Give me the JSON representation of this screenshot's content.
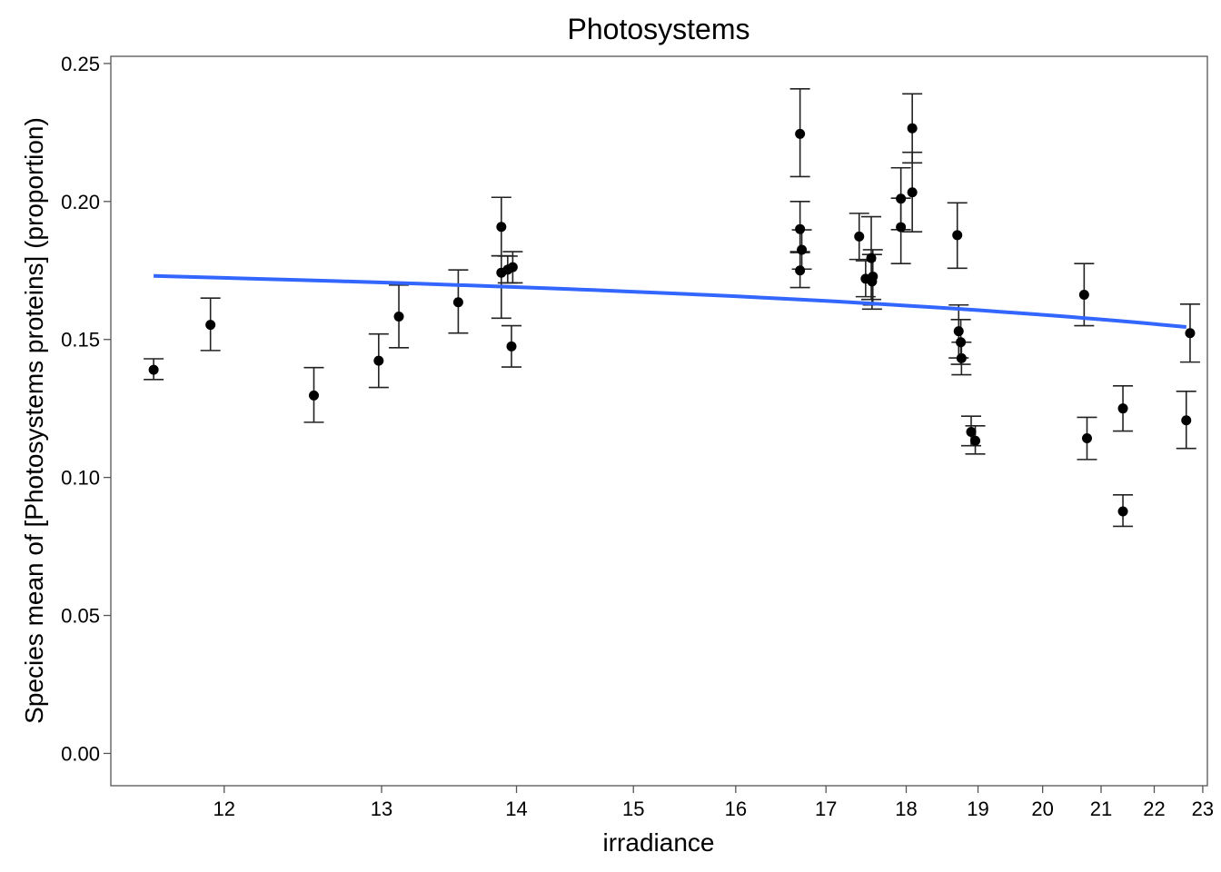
{
  "chart_data": {
    "type": "scatter",
    "title": "Photosystems",
    "xlabel": "irradiance",
    "ylabel": "Species mean of [Photosystems proteins] (proportion)",
    "x_scale": "reciprocal",
    "xlim": [
      11.37,
      23.1
    ],
    "ylim": [
      -0.0117,
      0.2526
    ],
    "x_ticks": [
      12,
      13,
      14,
      15,
      16,
      17,
      18,
      19,
      20,
      21,
      22,
      23
    ],
    "x_tick_labels": [
      "12",
      "13",
      "14",
      "15",
      "16",
      "17",
      "18",
      "19",
      "20",
      "21",
      "22",
      "23"
    ],
    "y_ticks": [
      0.0,
      0.05,
      0.1,
      0.15,
      0.2,
      0.25
    ],
    "y_tick_labels": [
      "0.00",
      "0.05",
      "0.10",
      "0.15",
      "0.20",
      "0.25"
    ],
    "grid": false,
    "point_color": "#000000",
    "trend_color": "#3366FF",
    "trend_line": {
      "x": [
        11.6,
        22.65
      ],
      "y": [
        0.173,
        0.1545
      ]
    },
    "points": [
      {
        "x": 11.6,
        "y": 0.139,
        "lo": 0.1355,
        "hi": 0.143
      },
      {
        "x": 11.92,
        "y": 0.1553,
        "lo": 0.146,
        "hi": 0.165
      },
      {
        "x": 12.55,
        "y": 0.1297,
        "lo": 0.12,
        "hi": 0.1398
      },
      {
        "x": 12.98,
        "y": 0.1423,
        "lo": 0.1326,
        "hi": 0.152
      },
      {
        "x": 13.12,
        "y": 0.1583,
        "lo": 0.147,
        "hi": 0.1697
      },
      {
        "x": 13.55,
        "y": 0.1635,
        "lo": 0.1523,
        "hi": 0.1752
      },
      {
        "x": 13.88,
        "y": 0.1908,
        "lo": 0.1803,
        "hi": 0.2015
      },
      {
        "x": 13.88,
        "y": 0.1742,
        "lo": 0.1577,
        "hi": 0.1803
      },
      {
        "x": 13.93,
        "y": 0.1753,
        "lo": 0.1705,
        "hi": 0.1802
      },
      {
        "x": 13.97,
        "y": 0.1762,
        "lo": 0.1705,
        "hi": 0.1818
      },
      {
        "x": 13.96,
        "y": 0.1475,
        "lo": 0.14,
        "hi": 0.155
      },
      {
        "x": 16.7,
        "y": 0.2245,
        "lo": 0.209,
        "hi": 0.2408
      },
      {
        "x": 16.7,
        "y": 0.19,
        "lo": 0.1815,
        "hi": 0.2
      },
      {
        "x": 16.72,
        "y": 0.1825,
        "lo": 0.1755,
        "hi": 0.1897
      },
      {
        "x": 16.7,
        "y": 0.175,
        "lo": 0.1688,
        "hi": 0.1818
      },
      {
        "x": 17.4,
        "y": 0.1873,
        "lo": 0.179,
        "hi": 0.1957
      },
      {
        "x": 17.48,
        "y": 0.172,
        "lo": 0.1655,
        "hi": 0.1785
      },
      {
        "x": 17.55,
        "y": 0.1795,
        "lo": 0.1645,
        "hi": 0.1945
      },
      {
        "x": 17.57,
        "y": 0.1728,
        "lo": 0.1625,
        "hi": 0.1825
      },
      {
        "x": 17.56,
        "y": 0.171,
        "lo": 0.161,
        "hi": 0.1808
      },
      {
        "x": 17.93,
        "y": 0.201,
        "lo": 0.1898,
        "hi": 0.2122
      },
      {
        "x": 17.93,
        "y": 0.1907,
        "lo": 0.1775,
        "hi": 0.2012
      },
      {
        "x": 18.08,
        "y": 0.2265,
        "lo": 0.214,
        "hi": 0.239
      },
      {
        "x": 18.08,
        "y": 0.2033,
        "lo": 0.189,
        "hi": 0.2178
      },
      {
        "x": 18.7,
        "y": 0.1878,
        "lo": 0.1758,
        "hi": 0.1995
      },
      {
        "x": 18.72,
        "y": 0.153,
        "lo": 0.1433,
        "hi": 0.1625
      },
      {
        "x": 18.75,
        "y": 0.149,
        "lo": 0.141,
        "hi": 0.1572
      },
      {
        "x": 18.76,
        "y": 0.1432,
        "lo": 0.1372,
        "hi": 0.149
      },
      {
        "x": 18.9,
        "y": 0.1165,
        "lo": 0.1115,
        "hi": 0.1222
      },
      {
        "x": 18.96,
        "y": 0.1133,
        "lo": 0.1085,
        "hi": 0.1187
      },
      {
        "x": 20.7,
        "y": 0.1662,
        "lo": 0.155,
        "hi": 0.1775
      },
      {
        "x": 20.75,
        "y": 0.1142,
        "lo": 0.1065,
        "hi": 0.1218
      },
      {
        "x": 21.4,
        "y": 0.125,
        "lo": 0.1168,
        "hi": 0.1332
      },
      {
        "x": 21.4,
        "y": 0.0877,
        "lo": 0.0823,
        "hi": 0.0937
      },
      {
        "x": 22.65,
        "y": 0.1207,
        "lo": 0.1105,
        "hi": 0.1312
      },
      {
        "x": 22.73,
        "y": 0.1523,
        "lo": 0.1418,
        "hi": 0.1628
      }
    ]
  }
}
